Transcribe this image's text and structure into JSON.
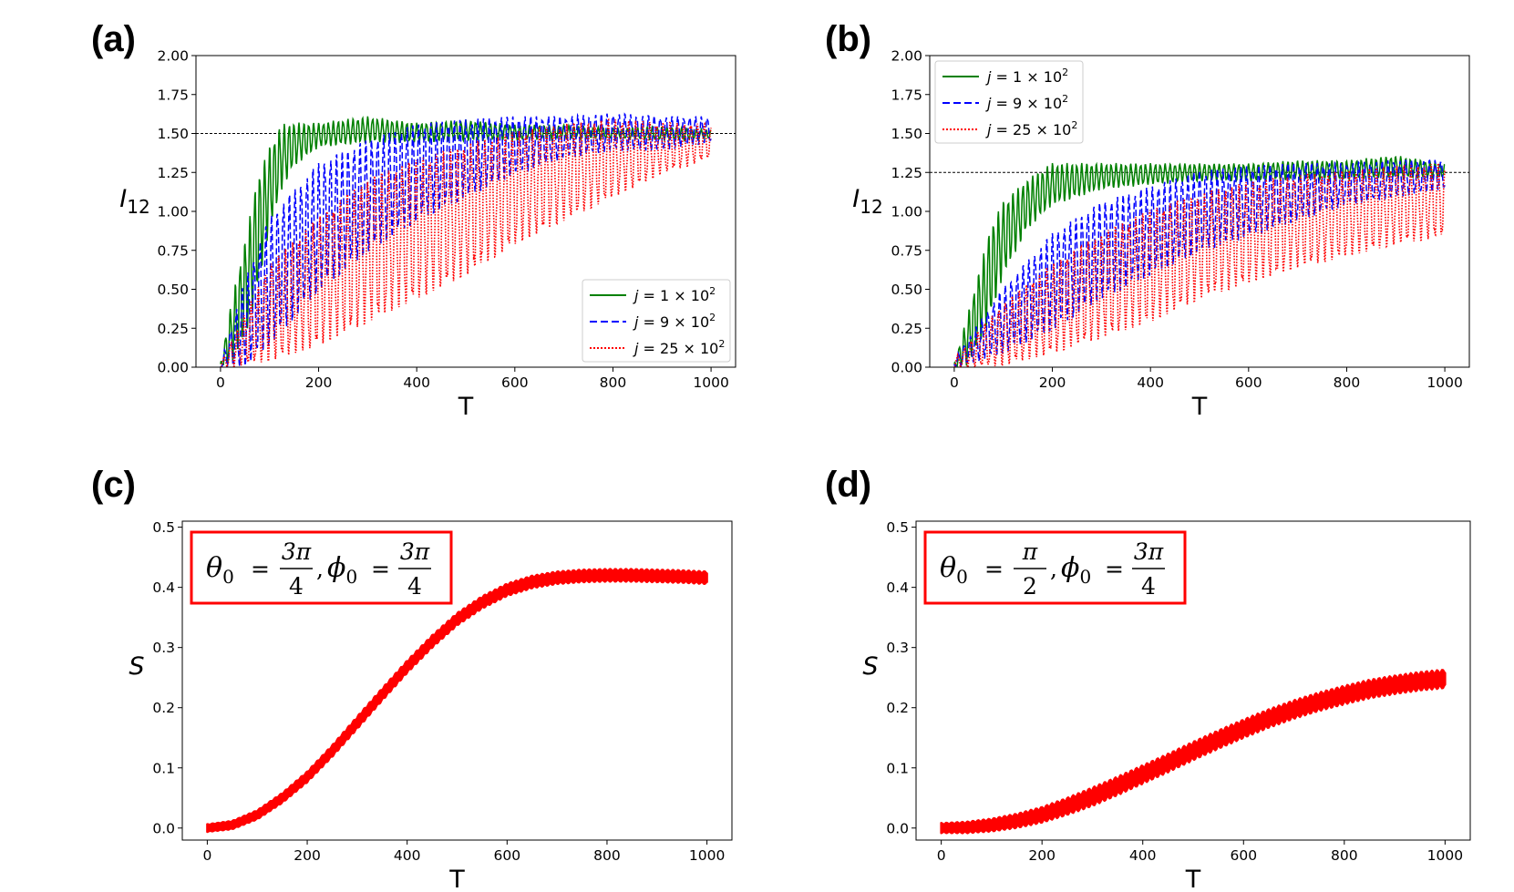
{
  "figure": {
    "panel_labels": [
      "(a)",
      "(b)",
      "(c)",
      "(d)"
    ]
  },
  "chart_data": [
    {
      "id": "a",
      "type": "line",
      "panel_label": "(a)",
      "xlabel": "T",
      "ylabel": "I",
      "ylabel_sub": "12",
      "xlim": [
        -50,
        1050
      ],
      "ylim": [
        0.0,
        2.0
      ],
      "xticks": [
        0,
        200,
        400,
        600,
        800,
        1000
      ],
      "xtick_labels": [
        "0",
        "200",
        "400",
        "600",
        "800",
        "1000"
      ],
      "yticks": [
        0.0,
        0.25,
        0.5,
        0.75,
        1.0,
        1.25,
        1.5,
        1.75,
        2.0
      ],
      "ytick_labels": [
        "0.00",
        "0.25",
        "0.50",
        "0.75",
        "1.00",
        "1.25",
        "1.50",
        "1.75",
        "2.00"
      ],
      "reference_line": 1.5,
      "legend_position": "lower-right",
      "series": [
        {
          "name": "j = 1 × 10²",
          "legend_j": "j",
          "legend_rest": " = 1 × 10",
          "legend_sup": "2",
          "color": "#008000",
          "dash": "solid",
          "x": [
            0,
            25,
            50,
            75,
            100,
            125,
            150,
            200,
            300,
            400,
            500,
            600,
            700,
            800,
            900,
            1000
          ],
          "upper": [
            0.02,
            0.45,
            0.8,
            1.2,
            1.4,
            1.55,
            1.56,
            1.56,
            1.6,
            1.56,
            1.58,
            1.55,
            1.55,
            1.53,
            1.54,
            1.52
          ],
          "lower": [
            0.0,
            0.05,
            0.2,
            0.5,
            0.9,
            1.15,
            1.3,
            1.42,
            1.45,
            1.45,
            1.46,
            1.46,
            1.47,
            1.47,
            1.46,
            1.47
          ],
          "period": 10
        },
        {
          "name": "j = 9 × 10²",
          "legend_j": "j",
          "legend_rest": " = 9 × 10",
          "legend_sup": "2",
          "color": "#0000ff",
          "dash": "dashed",
          "x": [
            0,
            50,
            100,
            200,
            300,
            400,
            500,
            600,
            700,
            800,
            900,
            1000
          ],
          "upper": [
            0.02,
            0.55,
            0.95,
            1.3,
            1.45,
            1.55,
            1.58,
            1.6,
            1.6,
            1.62,
            1.6,
            1.6
          ],
          "lower": [
            0.0,
            0.02,
            0.15,
            0.5,
            0.75,
            0.95,
            1.1,
            1.25,
            1.35,
            1.4,
            1.4,
            1.45
          ],
          "period": 12
        },
        {
          "name": "j = 25 × 10²",
          "legend_j": "j",
          "legend_rest": " = 25 × 10",
          "legend_sup": "2",
          "color": "#ff0000",
          "dash": "dotted",
          "x": [
            0,
            100,
            200,
            300,
            400,
            500,
            600,
            700,
            800,
            900,
            1000
          ],
          "upper": [
            0.02,
            0.65,
            0.95,
            1.2,
            1.32,
            1.42,
            1.5,
            1.55,
            1.58,
            1.56,
            1.55
          ],
          "lower": [
            0.0,
            0.05,
            0.15,
            0.3,
            0.45,
            0.6,
            0.8,
            0.95,
            1.1,
            1.25,
            1.35
          ],
          "period": 14
        }
      ]
    },
    {
      "id": "b",
      "type": "line",
      "panel_label": "(b)",
      "xlabel": "T",
      "ylabel": "I",
      "ylabel_sub": "12",
      "xlim": [
        -50,
        1050
      ],
      "ylim": [
        0.0,
        2.0
      ],
      "xticks": [
        0,
        200,
        400,
        600,
        800,
        1000
      ],
      "xtick_labels": [
        "0",
        "200",
        "400",
        "600",
        "800",
        "1000"
      ],
      "yticks": [
        0.0,
        0.25,
        0.5,
        0.75,
        1.0,
        1.25,
        1.5,
        1.75,
        2.0
      ],
      "ytick_labels": [
        "0.00",
        "0.25",
        "0.50",
        "0.75",
        "1.00",
        "1.25",
        "1.50",
        "1.75",
        "2.00"
      ],
      "reference_line": 1.25,
      "legend_position": "upper-left",
      "series": [
        {
          "name": "j = 1 × 10²",
          "legend_j": "j",
          "legend_rest": " = 1 × 10",
          "legend_sup": "2",
          "color": "#008000",
          "dash": "solid",
          "x": [
            0,
            25,
            50,
            75,
            100,
            150,
            200,
            300,
            400,
            500,
            600,
            700,
            800,
            900,
            1000
          ],
          "upper": [
            0.02,
            0.3,
            0.6,
            0.9,
            1.05,
            1.2,
            1.3,
            1.3,
            1.3,
            1.3,
            1.3,
            1.32,
            1.32,
            1.35,
            1.3
          ],
          "lower": [
            0.0,
            0.02,
            0.15,
            0.35,
            0.6,
            0.9,
            1.05,
            1.15,
            1.18,
            1.2,
            1.2,
            1.21,
            1.21,
            1.22,
            1.22
          ],
          "period": 10
        },
        {
          "name": "j = 9 × 10²",
          "legend_j": "j",
          "legend_rest": " = 9 × 10",
          "legend_sup": "2",
          "color": "#0000ff",
          "dash": "dashed",
          "x": [
            0,
            100,
            200,
            300,
            400,
            500,
            600,
            700,
            800,
            900,
            1000
          ],
          "upper": [
            0.05,
            0.5,
            0.85,
            1.05,
            1.15,
            1.25,
            1.28,
            1.3,
            1.3,
            1.32,
            1.32
          ],
          "lower": [
            0.0,
            0.1,
            0.25,
            0.45,
            0.6,
            0.75,
            0.85,
            0.95,
            1.05,
            1.1,
            1.15
          ],
          "period": 12
        },
        {
          "name": "j = 25 × 10²",
          "legend_j": "j",
          "legend_rest": " = 25 × 10",
          "legend_sup": "2",
          "color": "#ff0000",
          "dash": "dotted",
          "x": [
            0,
            100,
            200,
            300,
            400,
            500,
            600,
            700,
            800,
            900,
            1000
          ],
          "upper": [
            0.05,
            0.4,
            0.65,
            0.85,
            1.0,
            1.1,
            1.18,
            1.22,
            1.25,
            1.28,
            1.3
          ],
          "lower": [
            0.0,
            0.02,
            0.1,
            0.2,
            0.3,
            0.45,
            0.55,
            0.65,
            0.72,
            0.8,
            0.85
          ],
          "period": 14
        }
      ]
    },
    {
      "id": "c",
      "type": "line",
      "panel_label": "(c)",
      "xlabel": "T",
      "ylabel": "S",
      "xlim": [
        -50,
        1050
      ],
      "ylim": [
        -0.02,
        0.51
      ],
      "xticks": [
        0,
        200,
        400,
        600,
        800,
        1000
      ],
      "xtick_labels": [
        "0",
        "200",
        "400",
        "600",
        "800",
        "1000"
      ],
      "yticks": [
        0.0,
        0.1,
        0.2,
        0.3,
        0.4,
        0.5
      ],
      "ytick_labels": [
        "0.0",
        "0.1",
        "0.2",
        "0.3",
        "0.4",
        "0.5"
      ],
      "annotation": {
        "theta": "θ",
        "theta_sub": "0",
        "theta_num": "3π",
        "theta_den": "4",
        "phi": "ϕ",
        "phi_sub": "0",
        "phi_num": "3π",
        "phi_den": "4"
      },
      "annotation_color": "#ff0000",
      "series": [
        {
          "name": "S",
          "color": "#ff0000",
          "x": [
            0,
            50,
            100,
            150,
            200,
            250,
            300,
            350,
            400,
            450,
            500,
            550,
            600,
            650,
            700,
            750,
            800,
            850,
            900,
            950,
            1000
          ],
          "y": [
            0.0,
            0.005,
            0.022,
            0.05,
            0.085,
            0.128,
            0.175,
            0.222,
            0.268,
            0.31,
            0.347,
            0.375,
            0.396,
            0.409,
            0.416,
            0.419,
            0.42,
            0.42,
            0.419,
            0.418,
            0.416
          ],
          "band": 0.007
        }
      ]
    },
    {
      "id": "d",
      "type": "line",
      "panel_label": "(d)",
      "xlabel": "T",
      "ylabel": "S",
      "xlim": [
        -50,
        1050
      ],
      "ylim": [
        -0.02,
        0.51
      ],
      "xticks": [
        0,
        200,
        400,
        600,
        800,
        1000
      ],
      "xtick_labels": [
        "0",
        "200",
        "400",
        "600",
        "800",
        "1000"
      ],
      "yticks": [
        0.0,
        0.1,
        0.2,
        0.3,
        0.4,
        0.5
      ],
      "ytick_labels": [
        "0.0",
        "0.1",
        "0.2",
        "0.3",
        "0.4",
        "0.5"
      ],
      "annotation": {
        "theta": "θ",
        "theta_sub": "0",
        "theta_num": "π",
        "theta_den": "2",
        "phi": "ϕ",
        "phi_sub": "0",
        "phi_num": "3π",
        "phi_den": "4"
      },
      "annotation_color": "#ff0000",
      "series": [
        {
          "name": "S",
          "color": "#ff0000",
          "x": [
            0,
            50,
            100,
            150,
            200,
            250,
            300,
            350,
            400,
            450,
            500,
            550,
            600,
            650,
            700,
            750,
            800,
            850,
            900,
            950,
            1000
          ],
          "y": [
            0.0,
            0.001,
            0.005,
            0.012,
            0.022,
            0.036,
            0.052,
            0.07,
            0.089,
            0.108,
            0.128,
            0.147,
            0.165,
            0.182,
            0.197,
            0.21,
            0.221,
            0.231,
            0.238,
            0.244,
            0.248
          ],
          "band": 0.012
        }
      ]
    }
  ]
}
